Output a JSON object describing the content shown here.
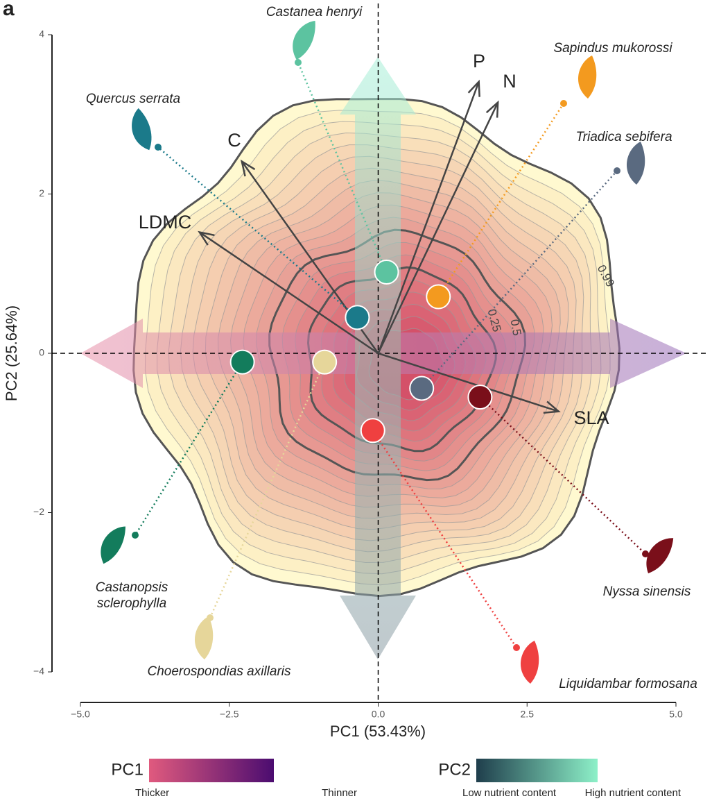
{
  "chart_data": {
    "type": "scatter",
    "panel_label": "a",
    "x_label": "PC1 (53.43%)",
    "y_label": "PC2 (25.64%)",
    "xlim": [
      -5,
      5
    ],
    "ylim": [
      -4,
      4
    ],
    "xticks": [
      {
        "value": -5,
        "label": "−5.0"
      },
      {
        "value": -2.5,
        "label": "−2.5"
      },
      {
        "value": 0,
        "label": "0.0"
      },
      {
        "value": 2.5,
        "label": "2.5"
      },
      {
        "value": 5,
        "label": "5.0"
      }
    ],
    "yticks": [
      {
        "value": -4,
        "label": "−4"
      },
      {
        "value": -2,
        "label": "−2"
      },
      0,
      2,
      4
    ],
    "points": [
      {
        "name": "Castanea henryi",
        "color": "#5cc3a0",
        "x": 0.14,
        "y": 1.02
      },
      {
        "name": "Sapindus mukorossi",
        "color": "#f39a1f",
        "x": 1.01,
        "y": 0.71
      },
      {
        "name": "Quercus serrata",
        "color": "#1b7a8a",
        "x": -0.35,
        "y": 0.45
      },
      {
        "name": "Triadica sebifera",
        "color": "#5a6a80",
        "x": 0.73,
        "y": -0.44
      },
      {
        "name": "Nyssa sinensis",
        "color": "#7a0f1a",
        "x": 1.71,
        "y": -0.55
      },
      {
        "name": "Liquidambar formosana",
        "color": "#ef4040",
        "x": -0.09,
        "y": -0.97
      },
      {
        "name": "Castanopsis sclerophylla",
        "color": "#137c5c",
        "x": -2.28,
        "y": -0.11
      },
      {
        "name": "Choerospondias axillaris",
        "color": "#e6d69a",
        "x": -0.9,
        "y": -0.11
      }
    ],
    "loadings": [
      {
        "name": "C",
        "x": -2.29,
        "y": 2.41
      },
      {
        "name": "LDMC",
        "x": -3.0,
        "y": 1.52
      },
      {
        "name": "P",
        "x": 1.69,
        "y": 3.41
      },
      {
        "name": "N",
        "x": 2.01,
        "y": 3.15
      },
      {
        "name": "SLA",
        "x": 3.03,
        "y": -0.73
      }
    ],
    "contour_levels": [
      0.25,
      0.5,
      0.99
    ],
    "legend": [
      {
        "title": "PC1",
        "low": "Thicker",
        "high": "Thinner",
        "colors": [
          "#e05a7e",
          "#4b0c70"
        ]
      },
      {
        "title": "PC2",
        "low": "Low nutrient content",
        "high": "High nutrient content",
        "colors": [
          "#1f3e4c",
          "#8df0c8"
        ]
      }
    ]
  }
}
